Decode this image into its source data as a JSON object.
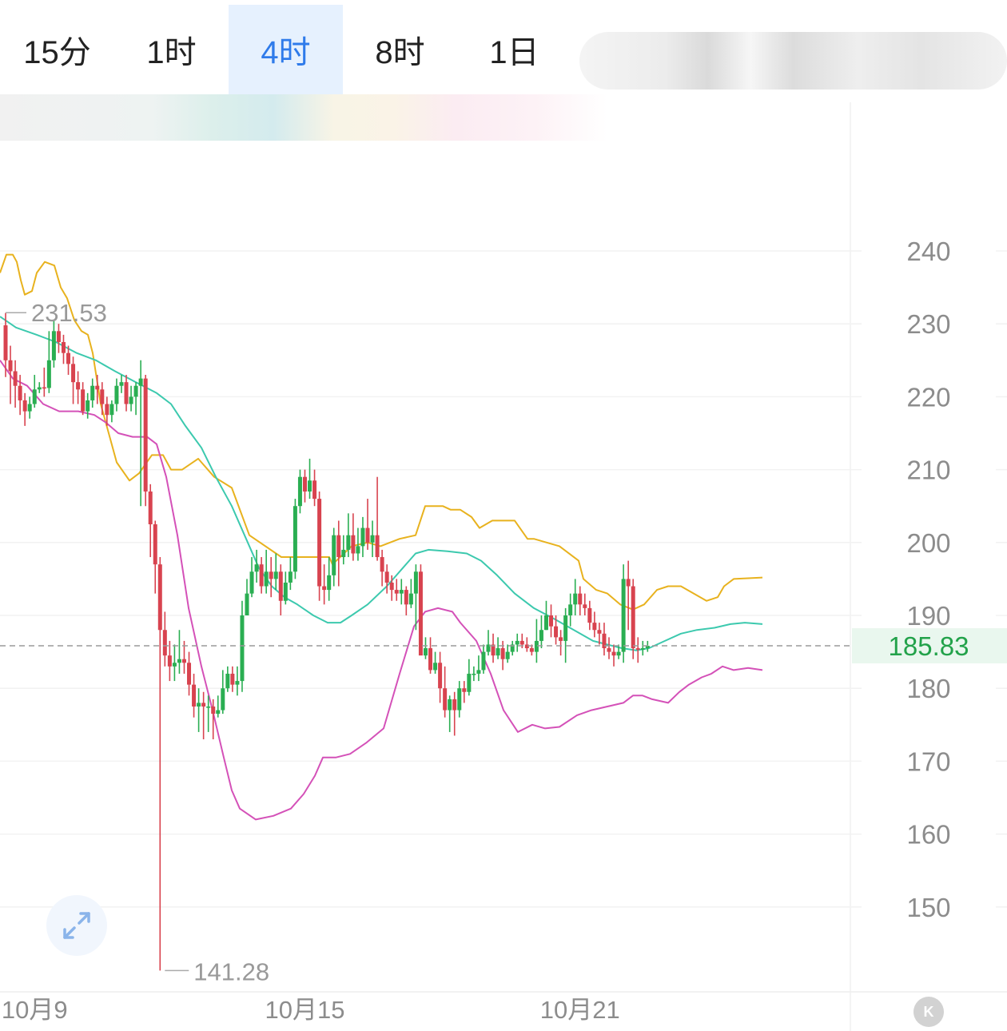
{
  "tabs": [
    {
      "label": "15分",
      "active": false
    },
    {
      "label": "1时",
      "active": false
    },
    {
      "label": "4时",
      "active": true
    },
    {
      "label": "8时",
      "active": false
    },
    {
      "label": "1日",
      "active": false
    }
  ],
  "colors": {
    "up": "#2aae52",
    "down": "#d8434f",
    "band_upper": "#e8b21e",
    "band_middle": "#3cc9ae",
    "band_lower": "#d451b8",
    "active_tab": "#2f7bea",
    "price_tag_bg": "#e9f7ee",
    "price_tag_text": "#22a24a"
  },
  "icons": {
    "expand": "expand-arrows-icon",
    "collapse": "k-circle-icon"
  },
  "chart_data": {
    "type": "candlestick",
    "y_ticks": [
      240,
      230,
      220,
      210,
      200,
      190,
      180,
      170,
      160,
      150
    ],
    "ylim": [
      140,
      250
    ],
    "x_labels": [
      "10月9",
      "10月15",
      "10月21"
    ],
    "x_label_candle_index": [
      6,
      62,
      119
    ],
    "current_price": "185.83",
    "current_price_value": 185.83,
    "max_label": "231.53",
    "max_value": 231.53,
    "max_candle_index": 0,
    "min_label": "141.28",
    "min_value": 141.28,
    "min_candle_index": 32,
    "candles": [
      [
        229.8,
        225,
        231.5,
        222.7
      ],
      [
        225,
        223.5,
        227,
        219
      ],
      [
        223.5,
        221.5,
        225,
        218.5
      ],
      [
        221.5,
        219.5,
        223,
        217.5
      ],
      [
        219.5,
        218,
        220.5,
        216
      ],
      [
        218,
        219,
        220,
        217
      ],
      [
        219,
        221,
        223,
        218.5
      ],
      [
        221,
        221.3,
        222,
        220.5
      ],
      [
        221.3,
        221.2,
        224,
        220
      ],
      [
        221.2,
        225,
        229,
        220.5
      ],
      [
        225,
        229,
        230.5,
        224
      ],
      [
        229,
        227.5,
        230,
        226
      ],
      [
        227.5,
        226,
        228.5,
        224.5
      ],
      [
        226,
        224.5,
        227,
        223
      ],
      [
        224.5,
        222,
        225.5,
        219
      ],
      [
        222,
        221,
        223.5,
        219
      ],
      [
        221,
        218,
        222,
        217.5
      ],
      [
        218,
        219.5,
        220.5,
        217
      ],
      [
        219.5,
        221.5,
        222.5,
        218.5
      ],
      [
        221.5,
        221,
        223,
        219
      ],
      [
        221,
        219,
        222,
        217.5
      ],
      [
        219,
        217.5,
        220,
        216
      ],
      [
        217.5,
        219,
        219.5,
        216.5
      ],
      [
        219,
        221.5,
        222.5,
        218
      ],
      [
        221.5,
        222,
        223,
        220.5
      ],
      [
        222,
        219,
        223,
        218
      ],
      [
        219,
        220,
        221.5,
        218
      ],
      [
        220,
        221.5,
        222,
        217.5
      ],
      [
        221.5,
        222.5,
        225,
        205
      ],
      [
        222.5,
        207,
        223,
        205
      ],
      [
        207,
        202.5,
        208,
        198
      ],
      [
        202.5,
        197,
        203,
        193
      ],
      [
        197,
        188,
        198,
        141.28
      ],
      [
        188,
        184.5,
        190.5,
        183
      ],
      [
        184.5,
        183,
        186.5,
        181
      ],
      [
        183,
        183.5,
        186,
        181
      ],
      [
        183.5,
        184,
        188,
        182
      ],
      [
        184,
        183.5,
        186.5,
        182
      ],
      [
        183.5,
        180.5,
        185,
        179
      ],
      [
        180.5,
        177.5,
        182,
        176
      ],
      [
        177.5,
        178,
        180,
        174
      ],
      [
        178,
        177.5,
        179.5,
        173
      ],
      [
        177.5,
        177.5,
        179,
        174
      ],
      [
        177.5,
        176.5,
        178.5,
        173
      ],
      [
        176.5,
        177,
        179,
        176
      ],
      [
        177,
        180,
        182.5,
        176.5
      ],
      [
        180,
        182,
        183,
        179.5
      ],
      [
        182,
        180.5,
        183,
        179.5
      ],
      [
        180.5,
        181,
        183,
        179
      ],
      [
        181,
        190,
        192,
        179.5
      ],
      [
        190,
        193,
        195,
        192
      ],
      [
        193,
        196,
        198,
        192.5
      ],
      [
        196,
        197,
        199,
        194.5
      ],
      [
        197,
        194,
        198,
        193
      ],
      [
        194,
        196,
        199,
        193
      ],
      [
        196,
        195,
        198,
        192.5
      ],
      [
        195,
        196,
        198.5,
        193.5
      ],
      [
        196,
        192,
        197,
        190
      ],
      [
        192,
        194.5,
        196,
        191.5
      ],
      [
        194.5,
        196,
        198,
        193.5
      ],
      [
        196,
        205,
        206,
        195
      ],
      [
        205,
        209,
        210,
        204
      ],
      [
        209,
        207,
        210,
        205.5
      ],
      [
        207,
        208.5,
        211.5,
        206
      ],
      [
        208.5,
        206,
        210,
        205
      ],
      [
        206,
        194,
        207,
        192
      ],
      [
        194,
        193.5,
        197,
        191.5
      ],
      [
        193.5,
        195.5,
        198,
        192
      ],
      [
        195.5,
        201,
        202,
        194
      ],
      [
        201,
        198,
        203,
        194
      ],
      [
        198,
        199,
        201,
        197
      ],
      [
        199,
        201,
        204,
        198
      ],
      [
        201,
        198.5,
        204,
        197.5
      ],
      [
        198.5,
        199.5,
        202,
        197.5
      ],
      [
        199.5,
        202,
        203.5,
        198
      ],
      [
        202,
        200,
        206,
        199
      ],
      [
        200,
        201,
        203,
        198
      ],
      [
        201,
        198,
        209,
        197.5
      ],
      [
        198,
        196,
        199,
        194
      ],
      [
        196,
        194.5,
        197,
        193
      ],
      [
        194.5,
        193.5,
        195.5,
        192
      ],
      [
        193.5,
        193,
        195,
        192
      ],
      [
        193,
        193.5,
        195,
        191.5
      ],
      [
        193.5,
        191.5,
        194,
        190
      ],
      [
        191.5,
        193,
        195,
        191
      ],
      [
        193,
        196,
        197,
        188
      ],
      [
        196,
        184.5,
        197,
        186.5
      ],
      [
        184.5,
        185.5,
        187,
        184
      ],
      [
        185.5,
        182.5,
        187,
        182
      ],
      [
        182.5,
        183.5,
        185,
        182
      ],
      [
        183.5,
        180,
        185,
        178
      ],
      [
        180,
        177,
        183,
        176
      ],
      [
        177,
        178.5,
        179,
        174
      ],
      [
        178.5,
        177,
        179.5,
        173.5
      ],
      [
        177,
        180,
        181,
        176
      ],
      [
        180,
        179.5,
        181,
        178
      ],
      [
        179.5,
        182,
        184,
        179
      ],
      [
        182,
        182,
        183,
        181
      ],
      [
        182,
        182.5,
        184.5,
        181
      ],
      [
        182.5,
        185,
        186,
        182
      ],
      [
        185,
        186,
        188,
        184.5
      ],
      [
        186,
        184.5,
        187.5,
        183.5
      ],
      [
        184.5,
        185.5,
        187,
        184
      ],
      [
        185.5,
        184,
        186.5,
        182.5
      ],
      [
        184,
        185,
        186,
        183.5
      ],
      [
        185,
        186,
        186.5,
        184.5
      ],
      [
        186,
        186.5,
        187.5,
        185
      ],
      [
        186.5,
        186,
        187.5,
        185.5
      ],
      [
        186,
        185.5,
        187,
        185
      ],
      [
        185.5,
        185,
        186,
        184.5
      ],
      [
        185,
        186.5,
        189.5,
        183.5
      ],
      [
        186.5,
        188,
        190,
        185.5
      ],
      [
        188,
        190,
        192,
        188
      ],
      [
        190,
        188.5,
        191.5,
        187
      ],
      [
        188.5,
        187,
        190,
        186
      ],
      [
        187,
        186.5,
        188,
        184.5
      ],
      [
        186.5,
        190,
        191,
        183.5
      ],
      [
        190,
        191.5,
        193,
        188.5
      ],
      [
        191.5,
        193,
        195,
        190
      ],
      [
        193,
        191.5,
        194,
        190
      ],
      [
        191.5,
        191,
        193,
        190
      ],
      [
        191,
        189,
        192,
        188
      ],
      [
        189,
        188,
        190.5,
        187
      ],
      [
        188,
        187.5,
        189,
        186
      ],
      [
        187.5,
        185.5,
        189,
        184.5
      ],
      [
        185.5,
        185,
        187,
        184
      ],
      [
        185,
        184.5,
        186,
        183
      ],
      [
        184.5,
        185,
        186,
        184
      ],
      [
        185,
        195,
        197,
        183.5
      ],
      [
        195,
        194,
        197.5,
        188
      ],
      [
        194,
        185.5,
        195,
        184
      ],
      [
        185.5,
        185.3,
        187,
        183.5
      ],
      [
        185.3,
        185.5,
        186.5,
        184.5
      ],
      [
        185.5,
        185.83,
        186.5,
        185
      ]
    ],
    "bands": {
      "upper": [
        [
          0,
          237
        ],
        [
          8,
          239.5
        ],
        [
          16,
          239.5
        ],
        [
          21,
          238.5
        ],
        [
          26,
          236
        ],
        [
          31,
          234
        ],
        [
          40,
          234.5
        ],
        [
          46,
          237
        ],
        [
          56,
          238.5
        ],
        [
          68,
          238
        ],
        [
          76,
          235
        ],
        [
          84,
          233.5
        ],
        [
          93,
          230.5
        ],
        [
          102,
          229
        ],
        [
          110,
          228.5
        ],
        [
          116,
          226
        ],
        [
          126,
          219
        ],
        [
          136,
          215
        ],
        [
          146,
          211
        ],
        [
          162,
          208.5
        ],
        [
          174,
          209.5
        ],
        [
          190,
          212
        ],
        [
          204,
          212
        ],
        [
          214,
          210
        ],
        [
          228,
          210
        ],
        [
          248,
          211.5
        ],
        [
          268,
          209
        ],
        [
          290,
          207.5
        ],
        [
          312,
          201
        ],
        [
          352,
          198
        ],
        [
          402,
          198
        ],
        [
          412,
          198
        ],
        [
          416,
          197
        ],
        [
          440,
          199.5
        ],
        [
          460,
          200
        ],
        [
          476,
          199.5
        ],
        [
          500,
          200.5
        ],
        [
          520,
          201
        ],
        [
          532,
          205
        ],
        [
          540,
          205
        ],
        [
          554,
          205
        ],
        [
          564,
          204.5
        ],
        [
          576,
          204.5
        ],
        [
          590,
          203.5
        ],
        [
          600,
          202
        ],
        [
          616,
          203
        ],
        [
          630,
          203
        ],
        [
          644,
          203
        ],
        [
          660,
          200.5
        ],
        [
          668,
          200.5
        ],
        [
          700,
          199.5
        ],
        [
          724,
          197.5
        ],
        [
          730,
          195
        ],
        [
          746,
          193.5
        ],
        [
          760,
          193
        ],
        [
          776,
          191.5
        ],
        [
          792,
          190.8
        ],
        [
          806,
          191.5
        ],
        [
          822,
          193.5
        ],
        [
          836,
          194
        ],
        [
          852,
          194
        ],
        [
          868,
          193
        ],
        [
          884,
          192
        ],
        [
          898,
          192.5
        ],
        [
          906,
          194
        ],
        [
          918,
          195
        ],
        [
          954,
          195.2
        ]
      ],
      "middle": [
        [
          0,
          231
        ],
        [
          20,
          229.5
        ],
        [
          46,
          228.5
        ],
        [
          70,
          227.5
        ],
        [
          96,
          226
        ],
        [
          120,
          225
        ],
        [
          144,
          223.5
        ],
        [
          170,
          222
        ],
        [
          196,
          220.5
        ],
        [
          214,
          219
        ],
        [
          232,
          216
        ],
        [
          252,
          213
        ],
        [
          270,
          209
        ],
        [
          290,
          205
        ],
        [
          310,
          200
        ],
        [
          324,
          196.5
        ],
        [
          340,
          194
        ],
        [
          356,
          192.5
        ],
        [
          372,
          191.5
        ],
        [
          392,
          190
        ],
        [
          410,
          189
        ],
        [
          426,
          189
        ],
        [
          440,
          190
        ],
        [
          460,
          191.5
        ],
        [
          484,
          194
        ],
        [
          504,
          196.5
        ],
        [
          520,
          198.5
        ],
        [
          536,
          199
        ],
        [
          560,
          198.8
        ],
        [
          584,
          198.5
        ],
        [
          602,
          197.5
        ],
        [
          622,
          195.5
        ],
        [
          644,
          193
        ],
        [
          668,
          191
        ],
        [
          694,
          189.5
        ],
        [
          718,
          188
        ],
        [
          742,
          186.5
        ],
        [
          760,
          186
        ],
        [
          778,
          185.5
        ],
        [
          796,
          185.2
        ],
        [
          812,
          185.5
        ],
        [
          832,
          186.5
        ],
        [
          852,
          187.5
        ],
        [
          872,
          188
        ],
        [
          894,
          188.3
        ],
        [
          914,
          188.8
        ],
        [
          932,
          189
        ],
        [
          954,
          188.8
        ]
      ],
      "lower": [
        [
          0,
          225
        ],
        [
          16,
          222.5
        ],
        [
          34,
          221.5
        ],
        [
          54,
          219
        ],
        [
          74,
          218
        ],
        [
          98,
          218
        ],
        [
          118,
          217.5
        ],
        [
          132,
          216.5
        ],
        [
          148,
          215
        ],
        [
          166,
          214.5
        ],
        [
          184,
          214.5
        ],
        [
          196,
          213.5
        ],
        [
          208,
          209
        ],
        [
          222,
          201
        ],
        [
          236,
          191
        ],
        [
          252,
          183
        ],
        [
          266,
          177
        ],
        [
          280,
          170.5
        ],
        [
          290,
          166
        ],
        [
          300,
          163.5
        ],
        [
          320,
          162
        ],
        [
          342,
          162.5
        ],
        [
          364,
          163.5
        ],
        [
          380,
          165.5
        ],
        [
          394,
          168
        ],
        [
          404,
          170.5
        ],
        [
          420,
          170.5
        ],
        [
          438,
          171
        ],
        [
          458,
          172.5
        ],
        [
          480,
          174.5
        ],
        [
          500,
          182
        ],
        [
          518,
          188.5
        ],
        [
          532,
          190.5
        ],
        [
          548,
          191
        ],
        [
          566,
          190.5
        ],
        [
          576,
          189
        ],
        [
          596,
          186.5
        ],
        [
          614,
          182
        ],
        [
          630,
          177
        ],
        [
          648,
          174
        ],
        [
          666,
          175
        ],
        [
          682,
          174.5
        ],
        [
          700,
          174.7
        ],
        [
          722,
          176.3
        ],
        [
          740,
          177
        ],
        [
          760,
          177.5
        ],
        [
          780,
          178
        ],
        [
          792,
          179
        ],
        [
          804,
          179
        ],
        [
          816,
          178.5
        ],
        [
          836,
          178
        ],
        [
          850,
          179.5
        ],
        [
          862,
          180.5
        ],
        [
          878,
          181.5
        ],
        [
          890,
          182
        ],
        [
          904,
          183
        ],
        [
          918,
          182.5
        ],
        [
          936,
          182.8
        ],
        [
          954,
          182.5
        ]
      ]
    }
  }
}
